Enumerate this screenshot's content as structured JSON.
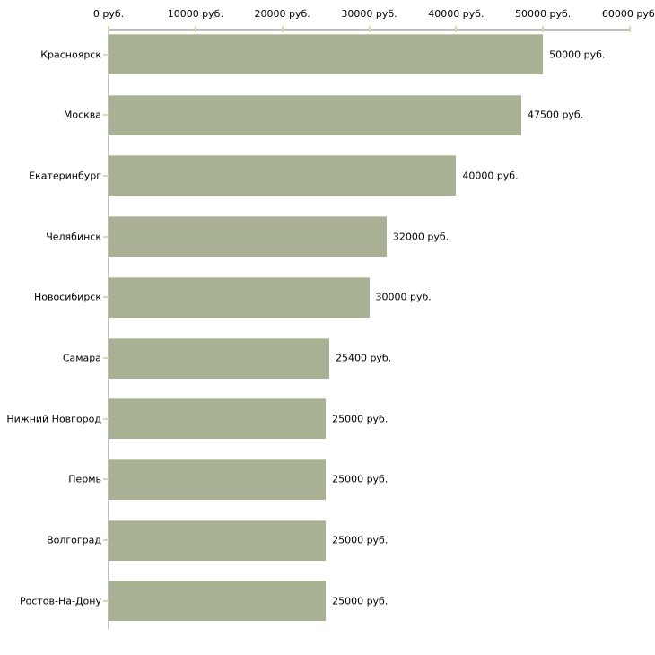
{
  "chart_data": {
    "type": "bar",
    "orientation": "horizontal",
    "title": "",
    "categories": [
      "Красноярск",
      "Москва",
      "Екатеринбург",
      "Челябинск",
      "Новосибирск",
      "Самара",
      "Нижний Новгород",
      "Пермь",
      "Волгоград",
      "Ростов-На-Дону"
    ],
    "values": [
      50000,
      47500,
      40000,
      32000,
      30000,
      25400,
      25000,
      25000,
      25000,
      25000
    ],
    "value_labels": [
      "50000 руб.",
      "47500 руб.",
      "40000 руб.",
      "32000 руб.",
      "30000 руб.",
      "25400 руб.",
      "25000 руб.",
      "25000 руб.",
      "25000 руб.",
      "25000 руб."
    ],
    "x_axis": {
      "position": "top",
      "min": 0,
      "max": 60000,
      "tick_values": [
        0,
        10000,
        20000,
        30000,
        40000,
        50000,
        60000
      ],
      "tick_labels": [
        "0 руб.",
        "10000 руб.",
        "20000 руб.",
        "30000 руб.",
        "40000 руб.",
        "50000 руб.",
        "60000 руб."
      ]
    },
    "legend": "none",
    "grid": "off",
    "colors": {
      "background": "#ffffff",
      "bar_fill": "#a9b194",
      "bar_top_edge": "#c5cab0",
      "axis_line": "#bdbdbd",
      "tick_mark": "#d8dbb0",
      "text": "#000000"
    }
  }
}
